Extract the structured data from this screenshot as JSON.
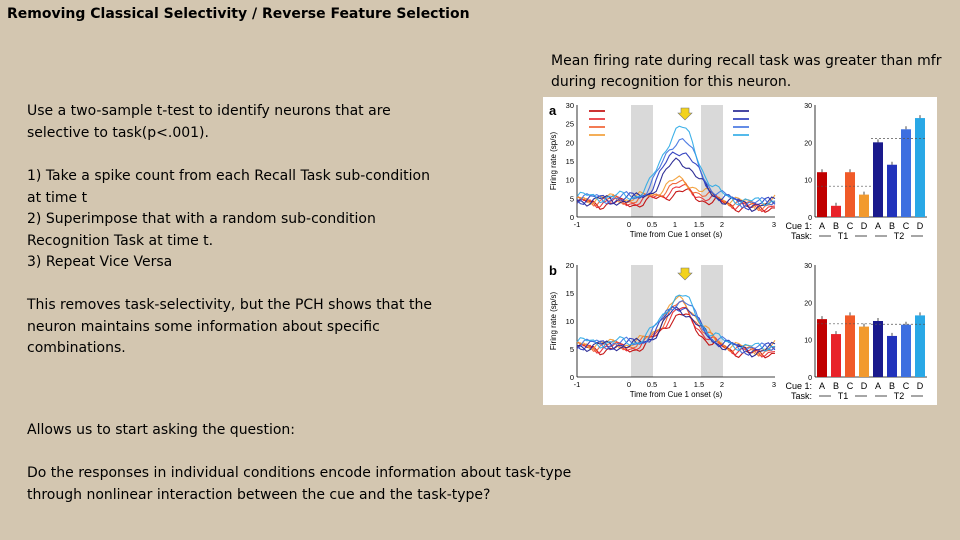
{
  "title": "Removing Classical Selectivity / Reverse Feature Selection",
  "caption": "Mean firing rate during recall task was greater than mfr during recognition for this neuron.",
  "body": {
    "intro": "Use a two-sample t-test to identify neurons that are selective to task(p<.001).",
    "steps": [
      "1) Take a spike count from each Recall Task sub-condition at time t",
      "2) Superimpose that with a random sub-condition Recognition Task at time t.",
      "3) Repeat Vice Versa"
    ],
    "result": "This removes task-selectivity, but the PCH shows that the neuron maintains some information about specific combinations.",
    "lead": "Allows us to start asking the question:",
    "question": "Do the responses in individual conditions encode information about task-type through nonlinear interaction between the cue and the task-type?"
  },
  "figure": {
    "panels": [
      {
        "label": "a",
        "ylabel": "Firing rate (sp/s)",
        "xlabel": "Time from Cue 1 onset (s)",
        "yticks": [
          "0",
          "5",
          "10",
          "15",
          "20",
          "25",
          "30"
        ],
        "xticks": [
          "-1",
          "0",
          "0.5",
          "1",
          "1.5",
          "2",
          "3"
        ],
        "bar_yticks": [
          "0",
          "10",
          "20",
          "30"
        ],
        "bars": [
          {
            "cue": "A",
            "task": "T1",
            "value": 12.0,
            "color": "#c00000"
          },
          {
            "cue": "B",
            "task": "T1",
            "value": 3.0,
            "color": "#e8232a"
          },
          {
            "cue": "C",
            "task": "T1",
            "value": 12.0,
            "color": "#f05a28"
          },
          {
            "cue": "D",
            "task": "T1",
            "value": 6.0,
            "color": "#f29a2e"
          },
          {
            "cue": "A",
            "task": "T2",
            "value": 20.0,
            "color": "#1a1a8c"
          },
          {
            "cue": "B",
            "task": "T2",
            "value": 14.0,
            "color": "#2233bb"
          },
          {
            "cue": "C",
            "task": "T2",
            "value": 23.5,
            "color": "#3d6fe0"
          },
          {
            "cue": "D",
            "task": "T2",
            "value": 26.5,
            "color": "#29a8e6"
          }
        ]
      },
      {
        "label": "b",
        "ylabel": "Firing rate (sp/s)",
        "xlabel": "Time from Cue 1 onset (s)",
        "yticks": [
          "0",
          "5",
          "10",
          "15",
          "20"
        ],
        "xticks": [
          "-1",
          "0",
          "0.5",
          "1",
          "1.5",
          "2",
          "3"
        ],
        "bar_yticks": [
          "0",
          "10",
          "20",
          "30"
        ],
        "bars": [
          {
            "cue": "A",
            "task": "T1",
            "value": 15.5,
            "color": "#c00000"
          },
          {
            "cue": "B",
            "task": "T1",
            "value": 11.5,
            "color": "#e8232a"
          },
          {
            "cue": "C",
            "task": "T1",
            "value": 16.5,
            "color": "#f05a28"
          },
          {
            "cue": "D",
            "task": "T1",
            "value": 13.5,
            "color": "#f29a2e"
          },
          {
            "cue": "A",
            "task": "T2",
            "value": 15.0,
            "color": "#1a1a8c"
          },
          {
            "cue": "B",
            "task": "T2",
            "value": 11.0,
            "color": "#2233bb"
          },
          {
            "cue": "C",
            "task": "T2",
            "value": 14.0,
            "color": "#3d6fe0"
          },
          {
            "cue": "D",
            "task": "T2",
            "value": 16.5,
            "color": "#29a8e6"
          }
        ]
      }
    ],
    "cue_label": "Cue 1:",
    "task_label": "Task:",
    "legend_colors": {
      "recall": [
        "#c00000",
        "#e8232a",
        "#f05a28",
        "#f29a2e"
      ],
      "recognition": [
        "#1a1a8c",
        "#2233bb",
        "#3d6fe0",
        "#29a8e6"
      ]
    },
    "arrow_color": "#f2d21b"
  }
}
